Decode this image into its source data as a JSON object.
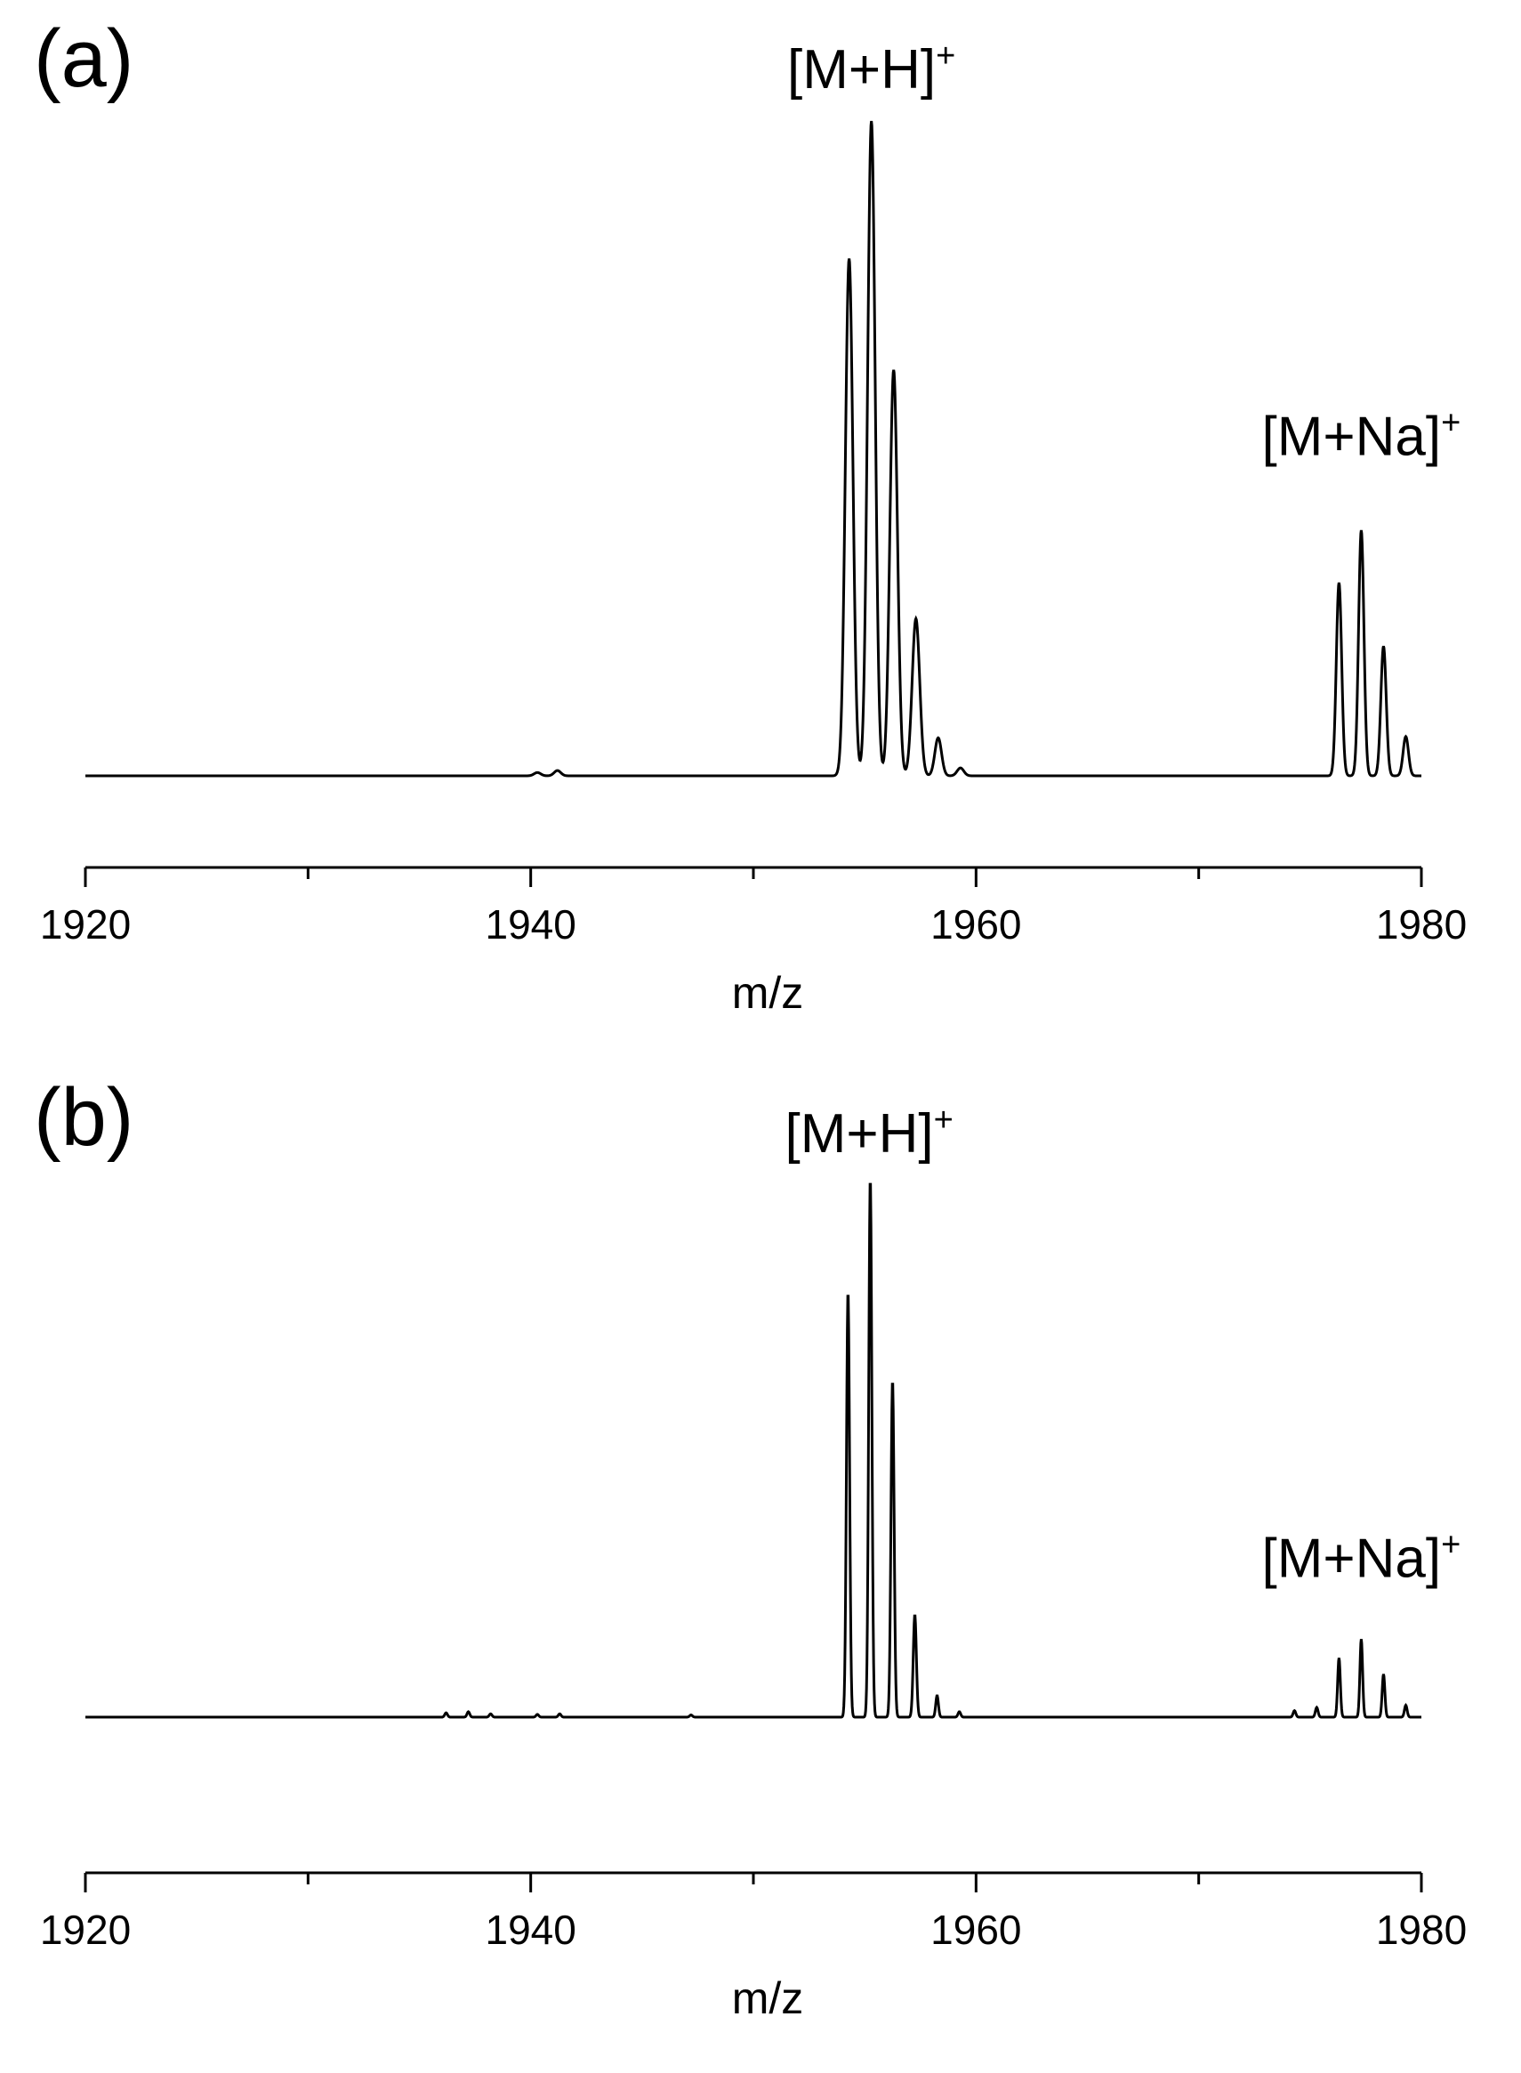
{
  "chart_data": [
    {
      "type": "line",
      "panel_label": "(a)",
      "xlabel": "m/z",
      "ylabel": "",
      "xlim": [
        1920,
        1980
      ],
      "ylim": [
        0,
        1.0
      ],
      "x_ticks": [
        1920,
        1940,
        1960,
        1980
      ],
      "x_minor_ticks": [
        1930,
        1950,
        1970
      ],
      "grid": false,
      "y_axis_visible": false,
      "series": [
        {
          "peaks": [
            {
              "x": 1940.3,
              "y": 0.005,
              "width": 0.15
            },
            {
              "x": 1941.2,
              "y": 0.008,
              "width": 0.15
            },
            {
              "x": 1954.3,
              "y": 0.79,
              "width": 0.17
            },
            {
              "x": 1955.3,
              "y": 1.0,
              "width": 0.17
            },
            {
              "x": 1956.3,
              "y": 0.62,
              "width": 0.17
            },
            {
              "x": 1957.3,
              "y": 0.24,
              "width": 0.17
            },
            {
              "x": 1958.3,
              "y": 0.058,
              "width": 0.15
            },
            {
              "x": 1959.3,
              "y": 0.012,
              "width": 0.15
            },
            {
              "x": 1976.3,
              "y": 0.295,
              "width": 0.12
            },
            {
              "x": 1977.3,
              "y": 0.375,
              "width": 0.12
            },
            {
              "x": 1978.3,
              "y": 0.198,
              "width": 0.12
            },
            {
              "x": 1979.3,
              "y": 0.06,
              "width": 0.12
            }
          ]
        }
      ],
      "annotations": [
        {
          "text": "[M+H]",
          "sup": "+",
          "x": 1955.3,
          "y": 1.05
        },
        {
          "text": "[M+Na]",
          "sup": "+",
          "x": 1977.3,
          "y": 0.49
        }
      ]
    },
    {
      "type": "line",
      "panel_label": "(b)",
      "xlabel": "m/z",
      "ylabel": "",
      "xlim": [
        1920,
        1980
      ],
      "ylim": [
        0,
        1.0
      ],
      "x_ticks": [
        1920,
        1940,
        1960,
        1980
      ],
      "x_minor_ticks": [
        1930,
        1950,
        1970
      ],
      "grid": false,
      "y_axis_visible": false,
      "series": [
        {
          "peaks": [
            {
              "x": 1936.2,
              "y": 0.008,
              "width": 0.06
            },
            {
              "x": 1937.2,
              "y": 0.01,
              "width": 0.06
            },
            {
              "x": 1938.2,
              "y": 0.006,
              "width": 0.06
            },
            {
              "x": 1940.3,
              "y": 0.005,
              "width": 0.06
            },
            {
              "x": 1941.3,
              "y": 0.006,
              "width": 0.06
            },
            {
              "x": 1947.2,
              "y": 0.004,
              "width": 0.06
            },
            {
              "x": 1954.25,
              "y": 0.79,
              "width": 0.07
            },
            {
              "x": 1955.25,
              "y": 1.0,
              "width": 0.07
            },
            {
              "x": 1956.25,
              "y": 0.625,
              "width": 0.07
            },
            {
              "x": 1957.25,
              "y": 0.19,
              "width": 0.07
            },
            {
              "x": 1958.25,
              "y": 0.04,
              "width": 0.06
            },
            {
              "x": 1959.25,
              "y": 0.01,
              "width": 0.06
            },
            {
              "x": 1974.3,
              "y": 0.012,
              "width": 0.06
            },
            {
              "x": 1975.3,
              "y": 0.018,
              "width": 0.06
            },
            {
              "x": 1976.3,
              "y": 0.11,
              "width": 0.06
            },
            {
              "x": 1977.3,
              "y": 0.145,
              "width": 0.06
            },
            {
              "x": 1978.3,
              "y": 0.08,
              "width": 0.06
            },
            {
              "x": 1979.3,
              "y": 0.022,
              "width": 0.06
            }
          ]
        }
      ],
      "annotations": [
        {
          "text": "[M+H]",
          "sup": "+",
          "x": 1955.2,
          "y": 1.05
        },
        {
          "text": "[M+Na]",
          "sup": "+",
          "x": 1977.3,
          "y": 0.26
        }
      ]
    }
  ]
}
